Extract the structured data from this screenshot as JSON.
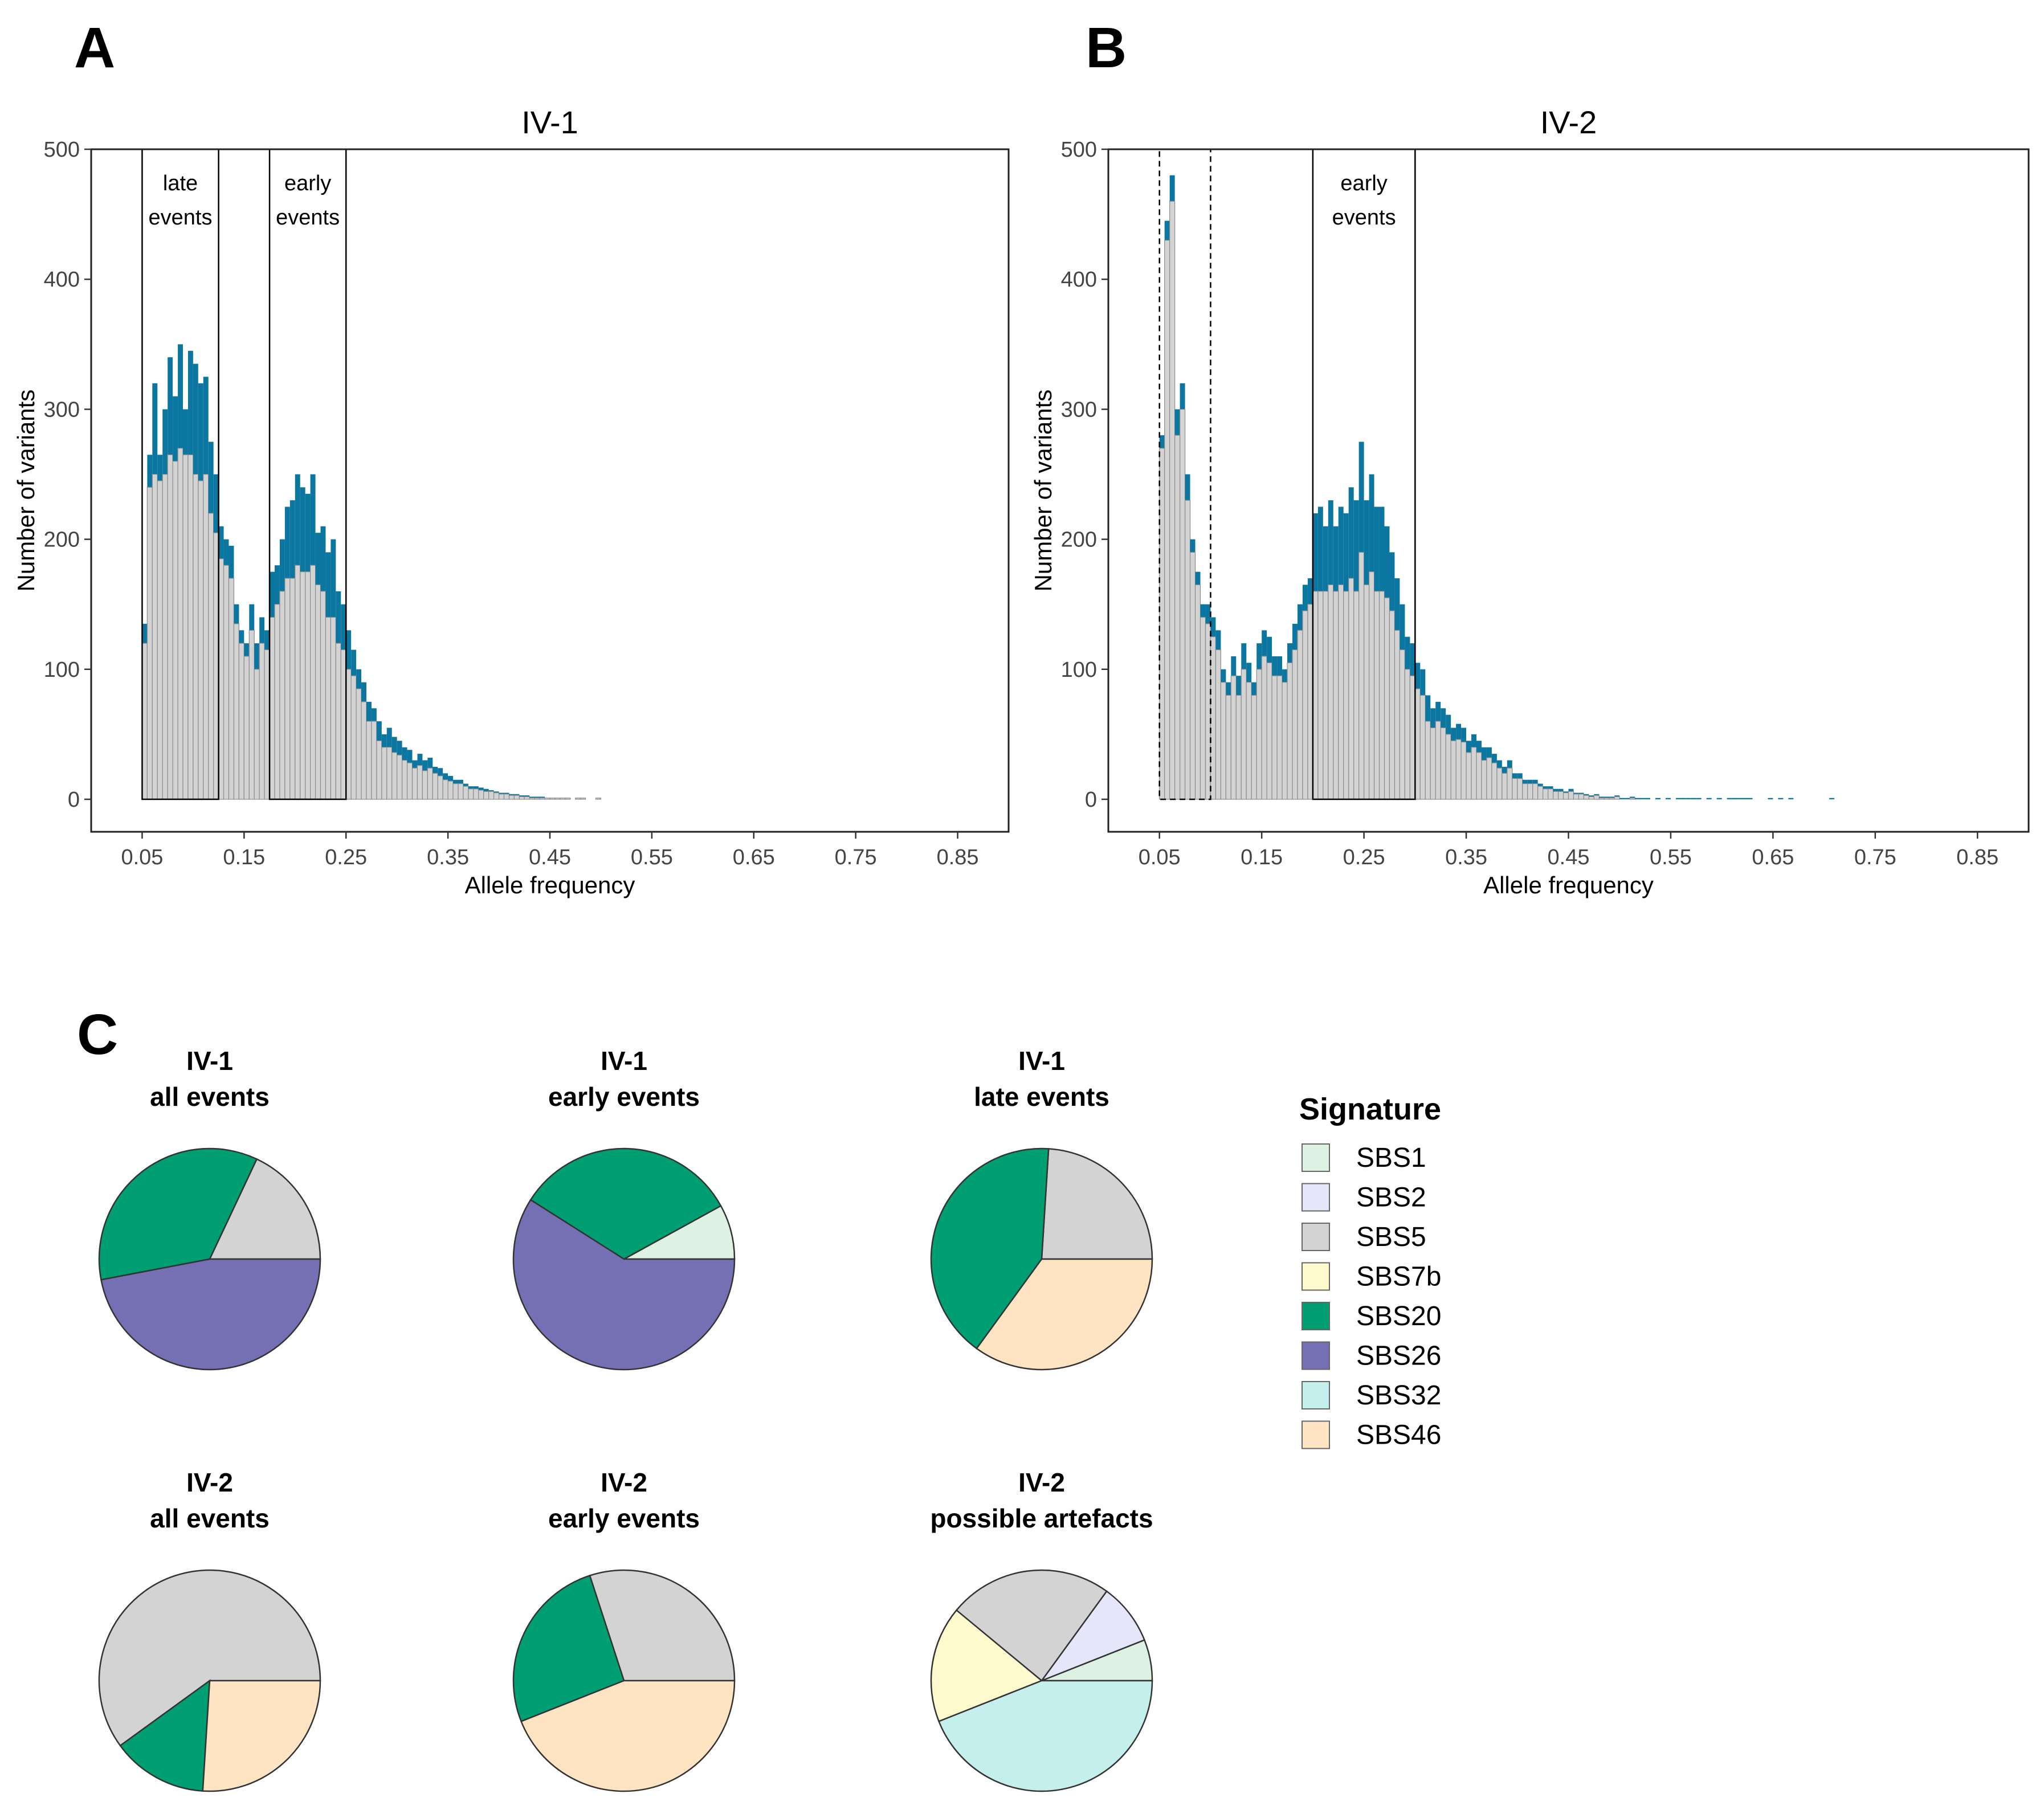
{
  "panel_letters": {
    "a": "A",
    "b": "B",
    "c": "C"
  },
  "colors": {
    "bar_total": "#0b76a0",
    "bar_base": "#d3d3d3",
    "bar_outline": "#8c8c8c",
    "SBS1": "#ddf2e3",
    "SBS2": "#e6e6fa",
    "SBS5": "#d3d3d3",
    "SBS7b": "#fffacd",
    "SBS20": "#009e73",
    "SBS26": "#7570b3",
    "SBS32": "#c4efed",
    "SBS46": "#ffe4c4"
  },
  "chart_data": [
    {
      "id": "A",
      "type": "bar",
      "title": "IV-1",
      "xlabel": "Allele frequency",
      "ylabel": "Number of variants",
      "xlim": [
        0.0,
        0.9
      ],
      "ylim": [
        -25,
        500
      ],
      "xticks": [
        "0.05",
        "0.15",
        "0.25",
        "0.35",
        "0.45",
        "0.55",
        "0.65",
        "0.75",
        "0.85"
      ],
      "yticks": [
        "0",
        "100",
        "200",
        "300",
        "400",
        "500"
      ],
      "bin_start": 0.05,
      "bin_width": 0.005,
      "series": [
        {
          "name": "Number of variants (total)",
          "values": [
            135,
            265,
            320,
            265,
            300,
            340,
            310,
            350,
            300,
            345,
            335,
            320,
            325,
            275,
            250,
            210,
            200,
            195,
            150,
            130,
            120,
            150,
            120,
            140,
            130,
            175,
            180,
            200,
            225,
            230,
            250,
            240,
            235,
            250,
            205,
            210,
            190,
            200,
            160,
            150,
            130,
            115,
            100,
            90,
            75,
            70,
            60,
            50,
            55,
            48,
            45,
            40,
            38,
            30,
            35,
            30,
            32,
            25,
            24,
            20,
            18,
            15,
            15,
            12,
            10,
            10,
            9,
            8,
            7,
            6,
            5,
            5,
            4,
            4,
            3,
            3,
            2,
            2,
            2,
            1,
            1,
            1,
            1,
            1,
            0,
            1,
            1,
            0,
            0,
            1
          ]
        },
        {
          "name": "Number of variants (base)",
          "values": [
            120,
            240,
            250,
            245,
            250,
            265,
            260,
            270,
            265,
            265,
            250,
            245,
            250,
            220,
            205,
            185,
            180,
            170,
            135,
            120,
            110,
            130,
            100,
            120,
            115,
            140,
            150,
            160,
            170,
            170,
            180,
            175,
            175,
            180,
            165,
            160,
            140,
            140,
            120,
            115,
            100,
            95,
            85,
            75,
            60,
            60,
            45,
            40,
            40,
            36,
            34,
            30,
            28,
            24,
            26,
            22,
            24,
            20,
            18,
            15,
            14,
            12,
            12,
            10,
            8,
            8,
            7,
            6,
            6,
            5,
            4,
            4,
            3,
            3,
            2,
            2,
            1,
            1,
            1,
            1,
            1,
            1,
            1,
            1,
            0,
            1,
            1,
            0,
            0,
            1
          ]
        }
      ],
      "regions": [
        {
          "label_lines": [
            "late",
            "events"
          ],
          "x_start": 0.05,
          "x_end": 0.125,
          "y_top": 500,
          "style": "solid"
        },
        {
          "label_lines": [
            "early",
            "events"
          ],
          "x_start": 0.175,
          "x_end": 0.25,
          "y_top": 500,
          "style": "solid"
        }
      ]
    },
    {
      "id": "B",
      "type": "bar",
      "title": "IV-2",
      "xlabel": "Allele frequency",
      "ylabel": "Number of variants",
      "xlim": [
        0.0,
        0.9
      ],
      "ylim": [
        -25,
        500
      ],
      "xticks": [
        "0.05",
        "0.15",
        "0.25",
        "0.35",
        "0.45",
        "0.55",
        "0.65",
        "0.75",
        "0.85"
      ],
      "yticks": [
        "0",
        "100",
        "200",
        "300",
        "400",
        "500"
      ],
      "bin_start": 0.05,
      "bin_width": 0.005,
      "series": [
        {
          "name": "Number of variants (total)",
          "values": [
            280,
            445,
            480,
            300,
            320,
            250,
            200,
            175,
            150,
            150,
            140,
            130,
            100,
            90,
            110,
            95,
            120,
            105,
            90,
            120,
            130,
            125,
            110,
            110,
            100,
            120,
            135,
            150,
            165,
            170,
            220,
            225,
            210,
            230,
            210,
            225,
            220,
            240,
            230,
            275,
            230,
            250,
            225,
            225,
            210,
            190,
            170,
            150,
            125,
            120,
            105,
            100,
            80,
            70,
            75,
            70,
            65,
            55,
            58,
            55,
            45,
            50,
            45,
            40,
            40,
            35,
            30,
            25,
            30,
            20,
            20,
            15,
            15,
            15,
            12,
            10,
            10,
            8,
            8,
            6,
            8,
            5,
            5,
            4,
            3,
            4,
            2,
            2,
            2,
            3,
            1,
            1,
            2,
            1,
            1,
            1,
            0,
            1,
            0,
            1,
            0,
            1,
            1,
            1,
            1,
            1,
            0,
            1,
            0,
            1,
            0,
            1,
            1,
            1,
            1,
            1,
            0,
            0,
            0,
            1,
            0,
            1,
            0,
            1,
            0,
            0,
            0,
            0,
            0,
            0,
            0,
            1
          ]
        },
        {
          "name": "Number of variants (base)",
          "values": [
            270,
            430,
            460,
            280,
            300,
            230,
            190,
            165,
            140,
            135,
            125,
            115,
            90,
            80,
            95,
            80,
            100,
            90,
            80,
            100,
            110,
            105,
            95,
            95,
            90,
            105,
            115,
            130,
            145,
            150,
            160,
            160,
            160,
            165,
            160,
            165,
            160,
            170,
            160,
            190,
            165,
            175,
            160,
            160,
            155,
            145,
            130,
            115,
            100,
            95,
            85,
            80,
            60,
            55,
            60,
            55,
            50,
            45,
            46,
            44,
            36,
            40,
            36,
            30,
            32,
            28,
            24,
            20,
            24,
            16,
            16,
            12,
            12,
            12,
            10,
            8,
            8,
            6,
            6,
            5,
            6,
            4,
            4,
            3,
            2,
            3,
            1,
            1,
            1,
            2,
            0,
            0,
            1,
            0,
            0,
            0,
            0,
            0,
            0,
            0,
            0,
            0,
            0,
            0,
            0,
            0,
            0,
            0,
            0,
            0,
            0,
            0,
            0,
            0,
            0,
            0,
            0,
            0,
            0,
            0,
            0,
            0,
            0,
            0,
            0,
            0,
            0,
            0,
            0,
            0,
            0,
            0
          ]
        }
      ],
      "regions": [
        {
          "label_lines": [],
          "x_start": 0.05,
          "x_end": 0.1,
          "y_top": 500,
          "style": "dashed"
        },
        {
          "label_lines": [
            "early",
            "events"
          ],
          "x_start": 0.2,
          "x_end": 0.3,
          "y_top": 500,
          "style": "solid"
        }
      ]
    },
    {
      "id": "C",
      "type": "pie",
      "legend": {
        "title": "Signature",
        "position": "right",
        "items": [
          "SBS1",
          "SBS2",
          "SBS5",
          "SBS7b",
          "SBS20",
          "SBS26",
          "SBS32",
          "SBS46"
        ]
      },
      "pies": [
        {
          "title_lines": [
            "IV-1",
            "all events"
          ],
          "slices": [
            {
              "label": "SBS5",
              "value": 18
            },
            {
              "label": "SBS20",
              "value": 35
            },
            {
              "label": "SBS26",
              "value": 47
            }
          ]
        },
        {
          "title_lines": [
            "IV-1",
            "early events"
          ],
          "slices": [
            {
              "label": "SBS1",
              "value": 8
            },
            {
              "label": "SBS20",
              "value": 33
            },
            {
              "label": "SBS26",
              "value": 59
            }
          ]
        },
        {
          "title_lines": [
            "IV-1",
            "late events"
          ],
          "slices": [
            {
              "label": "SBS5",
              "value": 24
            },
            {
              "label": "SBS20",
              "value": 41
            },
            {
              "label": "SBS46",
              "value": 35
            }
          ]
        },
        {
          "title_lines": [
            "IV-2",
            "all events"
          ],
          "slices": [
            {
              "label": "SBS5",
              "value": 60
            },
            {
              "label": "SBS20",
              "value": 14
            },
            {
              "label": "SBS46",
              "value": 26
            }
          ]
        },
        {
          "title_lines": [
            "IV-2",
            "early events"
          ],
          "slices": [
            {
              "label": "SBS5",
              "value": 30
            },
            {
              "label": "SBS20",
              "value": 26
            },
            {
              "label": "SBS46",
              "value": 44
            }
          ]
        },
        {
          "title_lines": [
            "IV-2",
            "possible artefacts"
          ],
          "slices": [
            {
              "label": "SBS1",
              "value": 6
            },
            {
              "label": "SBS2",
              "value": 9
            },
            {
              "label": "SBS5",
              "value": 24
            },
            {
              "label": "SBS7b",
              "value": 17
            },
            {
              "label": "SBS32",
              "value": 44
            }
          ]
        }
      ]
    }
  ]
}
